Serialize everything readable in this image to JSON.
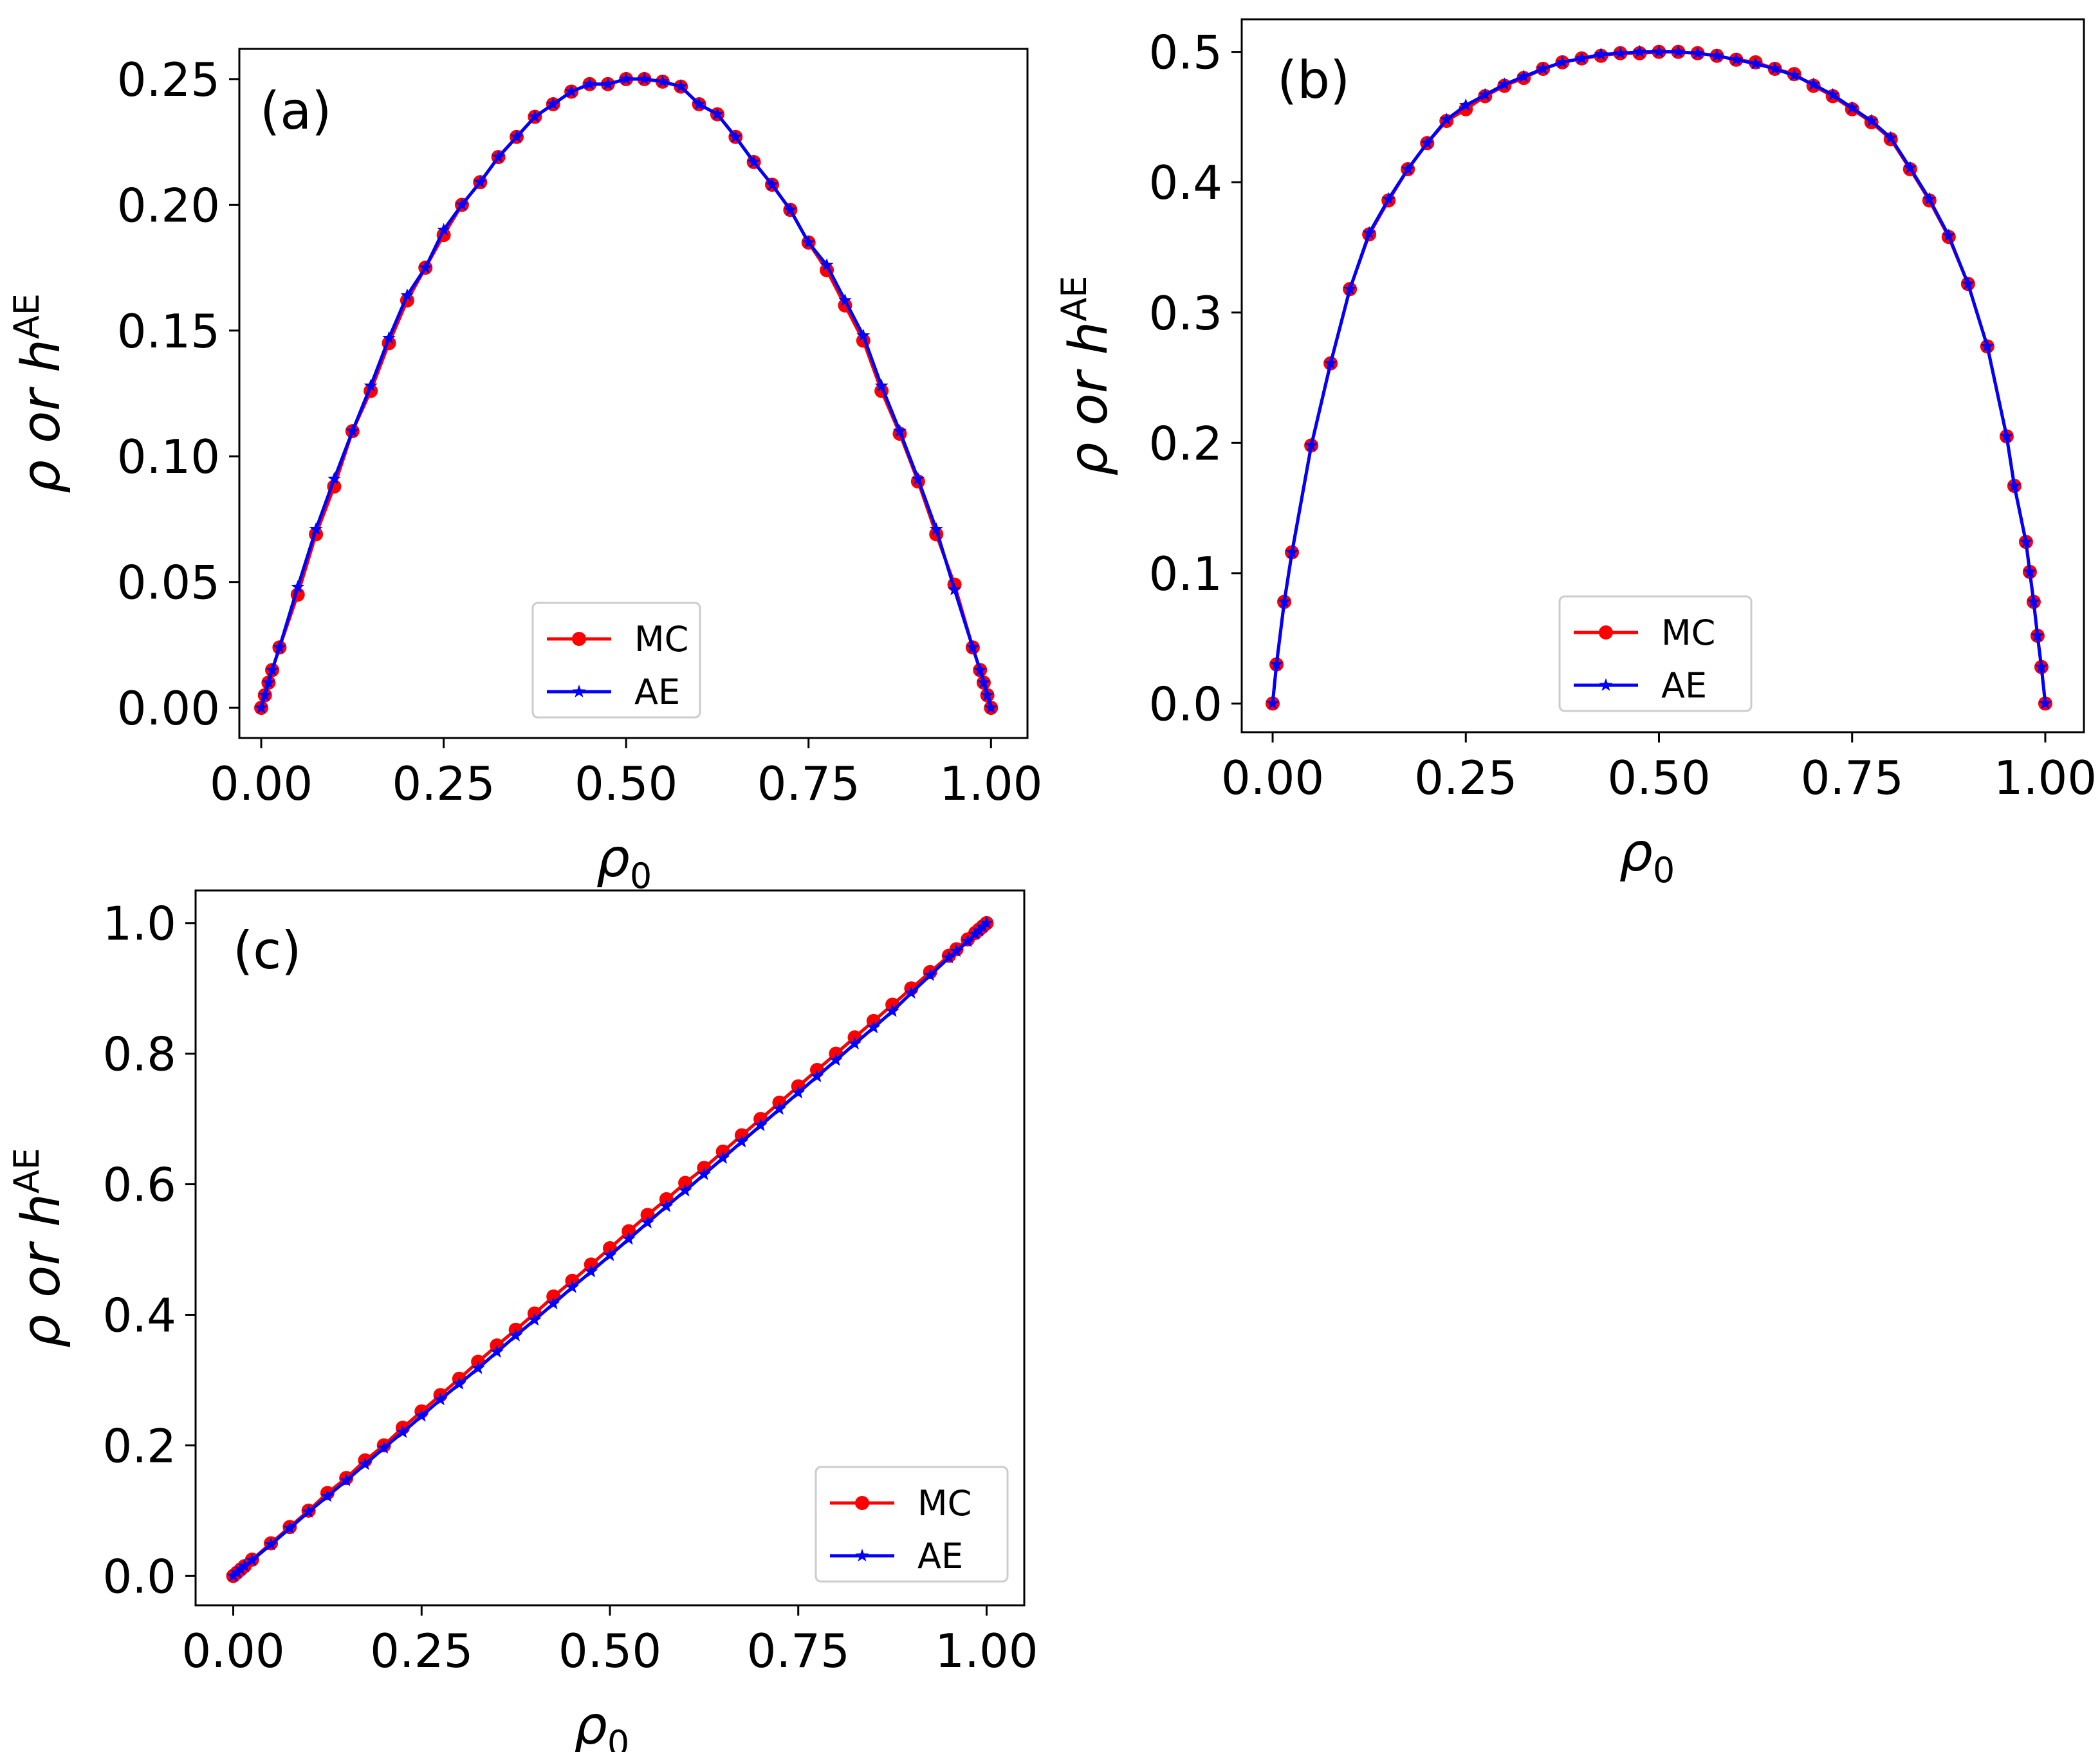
{
  "colors": {
    "mc": "#ff0000",
    "ae": "#0000ff",
    "axis": "#000000",
    "legend_border": "#cccccc"
  },
  "chart_data": [
    {
      "type": "line",
      "panel_label": "(a)",
      "xlabel": "ρ",
      "xlabel_sub": "0",
      "ylabel": "ρ or h",
      "ylabel_sup": "AE",
      "xlim": [
        -0.03,
        1.05
      ],
      "ylim": [
        -0.012,
        0.262
      ],
      "xticks": [
        0.0,
        0.25,
        0.5,
        0.75,
        1.0
      ],
      "xtick_labels": [
        "0.00",
        "0.25",
        "0.50",
        "0.75",
        "1.00"
      ],
      "yticks": [
        0.0,
        0.05,
        0.1,
        0.15,
        0.2,
        0.25
      ],
      "ytick_labels": [
        "0.00",
        "0.05",
        "0.10",
        "0.15",
        "0.20",
        "0.25"
      ],
      "legend": {
        "location": "lower-center",
        "entries": [
          "MC",
          "AE"
        ]
      },
      "series": [
        {
          "name": "MC",
          "marker": "circle",
          "x": [
            0,
            0.005,
            0.01,
            0.015,
            0.025,
            0.05,
            0.075,
            0.1,
            0.125,
            0.15,
            0.175,
            0.2,
            0.225,
            0.25,
            0.275,
            0.3,
            0.325,
            0.35,
            0.375,
            0.4,
            0.425,
            0.45,
            0.475,
            0.5,
            0.525,
            0.55,
            0.575,
            0.6,
            0.625,
            0.65,
            0.675,
            0.7,
            0.725,
            0.75,
            0.775,
            0.8,
            0.825,
            0.85,
            0.875,
            0.9,
            0.925,
            0.95,
            0.975,
            0.985,
            0.99,
            0.995,
            1.0
          ],
          "y": [
            0,
            0.005,
            0.01,
            0.015,
            0.024,
            0.045,
            0.069,
            0.088,
            0.11,
            0.126,
            0.145,
            0.162,
            0.175,
            0.188,
            0.2,
            0.209,
            0.219,
            0.227,
            0.235,
            0.24,
            0.245,
            0.248,
            0.248,
            0.25,
            0.25,
            0.249,
            0.247,
            0.24,
            0.236,
            0.227,
            0.217,
            0.208,
            0.198,
            0.185,
            0.174,
            0.16,
            0.146,
            0.126,
            0.109,
            0.09,
            0.069,
            0.049,
            0.024,
            0.015,
            0.01,
            0.005,
            0
          ]
        },
        {
          "name": "AE",
          "marker": "star",
          "x": [
            0,
            0.005,
            0.01,
            0.015,
            0.025,
            0.05,
            0.075,
            0.1,
            0.125,
            0.15,
            0.175,
            0.2,
            0.225,
            0.25,
            0.275,
            0.3,
            0.325,
            0.35,
            0.375,
            0.4,
            0.425,
            0.45,
            0.475,
            0.5,
            0.525,
            0.55,
            0.575,
            0.6,
            0.625,
            0.65,
            0.675,
            0.7,
            0.725,
            0.75,
            0.775,
            0.8,
            0.825,
            0.85,
            0.875,
            0.9,
            0.925,
            0.95,
            0.975,
            0.985,
            0.99,
            0.995,
            1.0
          ],
          "y": [
            0,
            0.005,
            0.01,
            0.015,
            0.024,
            0.048,
            0.071,
            0.091,
            0.11,
            0.128,
            0.147,
            0.164,
            0.175,
            0.19,
            0.2,
            0.209,
            0.219,
            0.227,
            0.235,
            0.24,
            0.245,
            0.248,
            0.248,
            0.25,
            0.25,
            0.249,
            0.247,
            0.24,
            0.236,
            0.227,
            0.217,
            0.208,
            0.198,
            0.185,
            0.176,
            0.162,
            0.148,
            0.128,
            0.11,
            0.091,
            0.071,
            0.047,
            0.024,
            0.015,
            0.01,
            0.005,
            0
          ]
        }
      ]
    },
    {
      "type": "line",
      "panel_label": "(b)",
      "xlabel": "ρ",
      "xlabel_sub": "0",
      "ylabel": "ρ or h",
      "ylabel_sup": "AE",
      "xlim": [
        -0.04,
        1.05
      ],
      "ylim": [
        -0.022,
        0.525
      ],
      "xticks": [
        0.0,
        0.25,
        0.5,
        0.75,
        1.0
      ],
      "xtick_labels": [
        "0.00",
        "0.25",
        "0.50",
        "0.75",
        "1.00"
      ],
      "yticks": [
        0.0,
        0.1,
        0.2,
        0.3,
        0.4,
        0.5
      ],
      "ytick_labels": [
        "0.0",
        "0.1",
        "0.2",
        "0.3",
        "0.4",
        "0.5"
      ],
      "legend": {
        "location": "lower-center",
        "entries": [
          "MC",
          "AE"
        ]
      },
      "series": [
        {
          "name": "MC",
          "marker": "circle",
          "x": [
            0,
            0.005,
            0.015,
            0.025,
            0.05,
            0.075,
            0.1,
            0.125,
            0.15,
            0.175,
            0.2,
            0.225,
            0.25,
            0.275,
            0.3,
            0.325,
            0.35,
            0.375,
            0.4,
            0.425,
            0.45,
            0.475,
            0.5,
            0.525,
            0.55,
            0.575,
            0.6,
            0.625,
            0.65,
            0.675,
            0.7,
            0.725,
            0.75,
            0.775,
            0.8,
            0.825,
            0.85,
            0.875,
            0.9,
            0.925,
            0.95,
            0.96,
            0.975,
            0.98,
            0.985,
            0.99,
            0.995,
            1.0
          ],
          "y": [
            0,
            0.03,
            0.078,
            0.116,
            0.198,
            0.261,
            0.318,
            0.36,
            0.386,
            0.41,
            0.43,
            0.447,
            0.456,
            0.466,
            0.474,
            0.48,
            0.487,
            0.492,
            0.495,
            0.497,
            0.499,
            0.499,
            0.5,
            0.5,
            0.499,
            0.497,
            0.494,
            0.492,
            0.487,
            0.483,
            0.474,
            0.466,
            0.456,
            0.446,
            0.433,
            0.41,
            0.386,
            0.358,
            0.322,
            0.274,
            0.205,
            0.167,
            0.124,
            0.101,
            0.078,
            0.052,
            0.028,
            0
          ]
        },
        {
          "name": "AE",
          "marker": "star",
          "x": [
            0,
            0.005,
            0.015,
            0.025,
            0.05,
            0.075,
            0.1,
            0.125,
            0.15,
            0.175,
            0.2,
            0.225,
            0.25,
            0.275,
            0.3,
            0.325,
            0.35,
            0.375,
            0.4,
            0.425,
            0.45,
            0.475,
            0.5,
            0.525,
            0.55,
            0.575,
            0.6,
            0.625,
            0.65,
            0.675,
            0.7,
            0.725,
            0.75,
            0.775,
            0.8,
            0.825,
            0.85,
            0.875,
            0.9,
            0.925,
            0.95,
            0.96,
            0.975,
            0.98,
            0.985,
            0.99,
            0.995,
            1.0
          ],
          "y": [
            0,
            0.03,
            0.078,
            0.116,
            0.198,
            0.261,
            0.318,
            0.361,
            0.387,
            0.41,
            0.43,
            0.448,
            0.459,
            0.467,
            0.475,
            0.481,
            0.487,
            0.492,
            0.495,
            0.498,
            0.499,
            0.5,
            0.5,
            0.5,
            0.499,
            0.497,
            0.494,
            0.491,
            0.487,
            0.482,
            0.475,
            0.467,
            0.457,
            0.447,
            0.434,
            0.411,
            0.387,
            0.359,
            0.322,
            0.274,
            0.205,
            0.167,
            0.124,
            0.101,
            0.078,
            0.052,
            0.028,
            0
          ]
        }
      ]
    },
    {
      "type": "line",
      "panel_label": "(c)",
      "xlabel": "ρ",
      "xlabel_sub": "0",
      "ylabel": "ρ or h",
      "ylabel_sup": "AE",
      "xlim": [
        -0.05,
        1.05
      ],
      "ylim": [
        -0.045,
        1.05
      ],
      "xticks": [
        0.0,
        0.25,
        0.5,
        0.75,
        1.0
      ],
      "xtick_labels": [
        "0.00",
        "0.25",
        "0.50",
        "0.75",
        "1.00"
      ],
      "yticks": [
        0.0,
        0.2,
        0.4,
        0.6,
        0.8,
        1.0
      ],
      "ytick_labels": [
        "0.0",
        "0.2",
        "0.4",
        "0.6",
        "0.8",
        "1.0"
      ],
      "legend": {
        "location": "lower-right",
        "entries": [
          "MC",
          "AE"
        ]
      },
      "series": [
        {
          "name": "MC",
          "marker": "circle",
          "x": [
            0,
            0.005,
            0.01,
            0.015,
            0.025,
            0.05,
            0.075,
            0.1,
            0.125,
            0.15,
            0.175,
            0.2,
            0.225,
            0.25,
            0.275,
            0.3,
            0.325,
            0.35,
            0.375,
            0.4,
            0.425,
            0.45,
            0.475,
            0.5,
            0.525,
            0.55,
            0.575,
            0.6,
            0.625,
            0.65,
            0.675,
            0.7,
            0.725,
            0.75,
            0.775,
            0.8,
            0.825,
            0.85,
            0.875,
            0.9,
            0.925,
            0.95,
            0.96,
            0.975,
            0.985,
            0.99,
            0.995,
            1.0
          ],
          "y": [
            0,
            0.005,
            0.01,
            0.015,
            0.025,
            0.05,
            0.075,
            0.1,
            0.127,
            0.15,
            0.177,
            0.2,
            0.227,
            0.252,
            0.277,
            0.302,
            0.328,
            0.353,
            0.377,
            0.402,
            0.428,
            0.452,
            0.477,
            0.502,
            0.528,
            0.553,
            0.577,
            0.602,
            0.625,
            0.65,
            0.675,
            0.7,
            0.725,
            0.75,
            0.775,
            0.8,
            0.825,
            0.85,
            0.875,
            0.9,
            0.925,
            0.95,
            0.96,
            0.975,
            0.985,
            0.99,
            0.995,
            1.0
          ]
        },
        {
          "name": "AE",
          "marker": "star",
          "x": [
            0,
            0.005,
            0.01,
            0.015,
            0.025,
            0.05,
            0.075,
            0.1,
            0.125,
            0.15,
            0.175,
            0.2,
            0.225,
            0.25,
            0.275,
            0.3,
            0.325,
            0.35,
            0.375,
            0.4,
            0.425,
            0.45,
            0.475,
            0.5,
            0.525,
            0.55,
            0.575,
            0.6,
            0.625,
            0.65,
            0.675,
            0.7,
            0.725,
            0.75,
            0.775,
            0.8,
            0.825,
            0.85,
            0.875,
            0.9,
            0.925,
            0.95,
            0.96,
            0.975,
            0.985,
            0.99,
            0.995,
            1.0
          ],
          "y": [
            0,
            0.005,
            0.01,
            0.015,
            0.024,
            0.048,
            0.073,
            0.098,
            0.122,
            0.146,
            0.171,
            0.196,
            0.22,
            0.245,
            0.27,
            0.294,
            0.318,
            0.343,
            0.368,
            0.392,
            0.417,
            0.442,
            0.466,
            0.491,
            0.516,
            0.541,
            0.566,
            0.59,
            0.615,
            0.64,
            0.665,
            0.69,
            0.715,
            0.74,
            0.765,
            0.79,
            0.815,
            0.84,
            0.865,
            0.893,
            0.92,
            0.947,
            0.957,
            0.972,
            0.983,
            0.988,
            0.994,
            1.0
          ]
        }
      ]
    }
  ]
}
